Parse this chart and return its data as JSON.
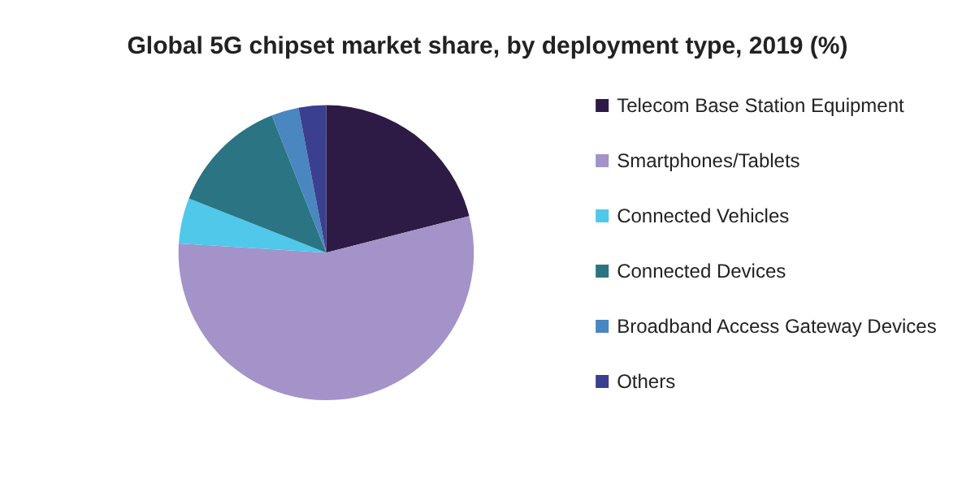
{
  "chart_data": {
    "type": "pie",
    "title": "Global 5G chipset market share, by deployment type, 2019 (%)",
    "categories": [
      "Telecom Base Station Equipment",
      "Smartphones/Tablets",
      "Connected Vehicles",
      "Connected Devices",
      "Broadband Access Gateway Devices",
      "Others"
    ],
    "values": [
      21,
      55,
      5,
      13,
      3,
      3
    ],
    "colors": [
      "#2d1b45",
      "#a393c8",
      "#4fc8ea",
      "#2a7483",
      "#4a86c0",
      "#3b3f8f"
    ],
    "legend": "right"
  }
}
